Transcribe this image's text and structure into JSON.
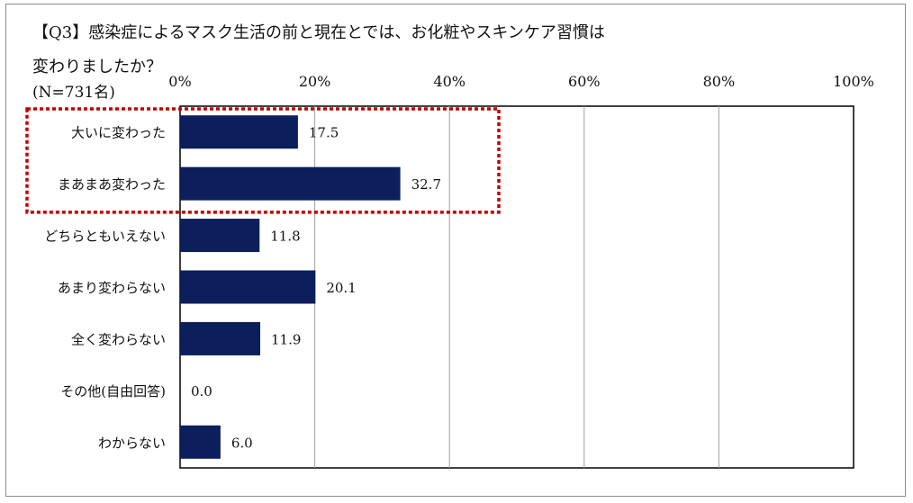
{
  "title_line1": "【Q3】感染症によるマスク生活の前と現在とでは、お化粧やスキンケア習慣は",
  "title_line2": "変わりましたか？",
  "sample_size": "(N=731名)",
  "colors": {
    "bar": "#0c1e5b",
    "highlight": "#c00000",
    "grid": "#a0a0a0"
  },
  "chart_data": {
    "type": "bar",
    "orientation": "horizontal",
    "title": "【Q3】感染症によるマスク生活の前と現在とでは、お化粧やスキンケア習慣は変わりましたか？",
    "categories": [
      "大いに変わった",
      "まあまあ変わった",
      "どちらともいえない",
      "あまり変わらない",
      "全く変わらない",
      "その他(自由回答)",
      "わからない"
    ],
    "values": [
      17.5,
      32.7,
      11.8,
      20.1,
      11.9,
      0.0,
      6.0
    ],
    "value_labels": [
      "17.5",
      "32.7",
      "11.8",
      "20.1",
      "11.9",
      "0.0",
      "6.0"
    ],
    "xlim": [
      0,
      100
    ],
    "xticks": [
      "0%",
      "20%",
      "40%",
      "60%",
      "80%",
      "100%"
    ],
    "grid": true,
    "highlighted_categories": [
      "大いに変わった",
      "まあまあ変わった"
    ]
  }
}
